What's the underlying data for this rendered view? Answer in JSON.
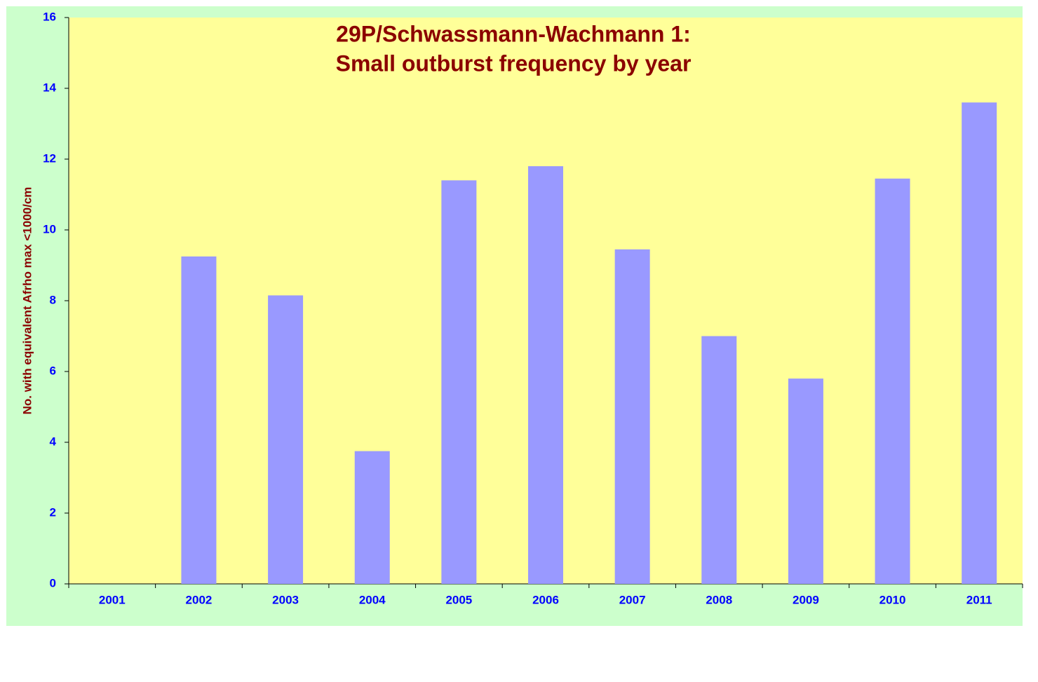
{
  "chart_data": {
    "type": "bar",
    "title": [
      "29P/Schwassmann-Wachmann 1:",
      "Small outburst frequency by year"
    ],
    "y_label": "No. with equivalent Afrho max <1000/cm",
    "categories": [
      "2001",
      "2002",
      "2003",
      "2004",
      "2005",
      "2006",
      "2007",
      "2008",
      "2009",
      "2010",
      "2011"
    ],
    "values": [
      0,
      9.25,
      8.15,
      3.75,
      11.4,
      11.8,
      9.45,
      7,
      5.8,
      11.45,
      13.6
    ],
    "color": "#9999ff",
    "ylim": [
      0,
      16
    ],
    "yticks": [
      0,
      2,
      4,
      6,
      8,
      10,
      12,
      14,
      16
    ],
    "grid": false
  }
}
